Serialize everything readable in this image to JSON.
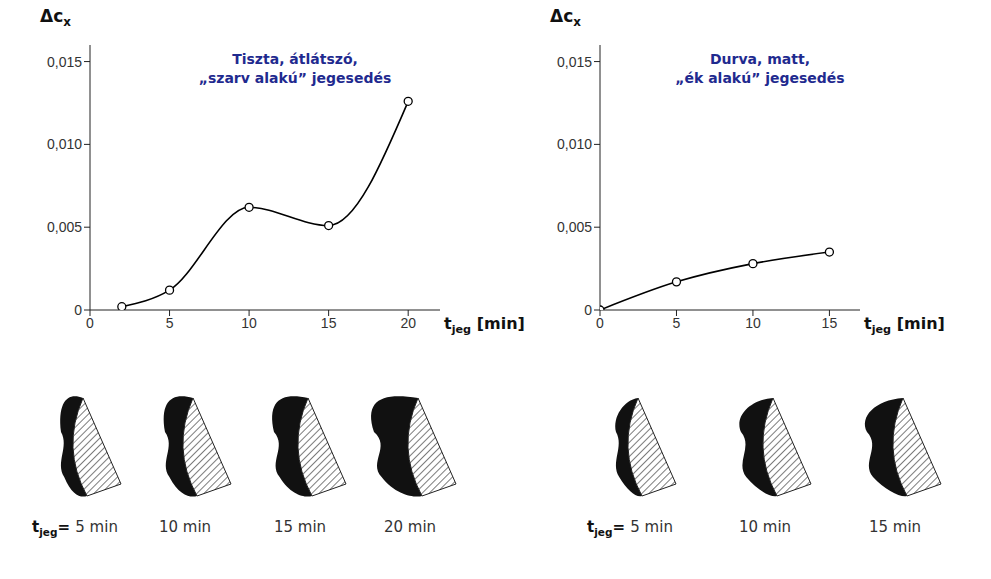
{
  "chart_data": [
    {
      "type": "line",
      "title": [
        "Tiszta, átlátszó,",
        "„szarv alakú” jegesedés"
      ],
      "xlabel": {
        "main": "t",
        "sub": "jeg",
        "rest": " [min]"
      },
      "ylabel": {
        "main": "Δc",
        "sub": "x"
      },
      "x": [
        2,
        5,
        10,
        15,
        20
      ],
      "values": [
        0.0002,
        0.0012,
        0.0062,
        0.0051,
        0.0126
      ],
      "color": "#000000",
      "marker": "circle",
      "line_style": "solid",
      "xlim": [
        0,
        22
      ],
      "xticks": [
        0,
        5,
        10,
        15,
        20
      ],
      "ylim": [
        0,
        0.016
      ],
      "yticks": [
        0,
        {
          "value": 0.005,
          "label": "0,005"
        },
        {
          "value": 0.01,
          "label": "0,010"
        },
        {
          "value": 0.015,
          "label": "0,015"
        }
      ],
      "grid": false
    },
    {
      "type": "line",
      "title": [
        "Durva, matt,",
        "„ék alakú” jegesedés"
      ],
      "xlabel": {
        "main": "t",
        "sub": "jeg",
        "rest": " [min]"
      },
      "ylabel": {
        "main": "Δc",
        "sub": "x"
      },
      "x": [
        0,
        5,
        10,
        15
      ],
      "values": [
        0,
        0.0017,
        0.0028,
        0.0035
      ],
      "color": "#000000",
      "marker": "circle",
      "line_style": "solid",
      "xlim": [
        0,
        17
      ],
      "xticks": [
        0,
        5,
        10,
        15
      ],
      "ylim": [
        0,
        0.016
      ],
      "yticks": [
        0,
        {
          "value": 0.005,
          "label": "0,005"
        },
        {
          "value": 0.01,
          "label": "0,010"
        },
        {
          "value": 0.015,
          "label": "0,015"
        }
      ],
      "grid": false
    }
  ],
  "sketches": [
    {
      "prefix": {
        "main": "t",
        "sub": "jeg",
        "rest": "="
      },
      "labels": [
        "5 min",
        "10 min",
        "15 min",
        "20 min"
      ]
    },
    {
      "prefix": {
        "main": "t",
        "sub": "jeg",
        "rest": "="
      },
      "labels": [
        "5 min",
        "10 min",
        "15 min"
      ]
    }
  ]
}
